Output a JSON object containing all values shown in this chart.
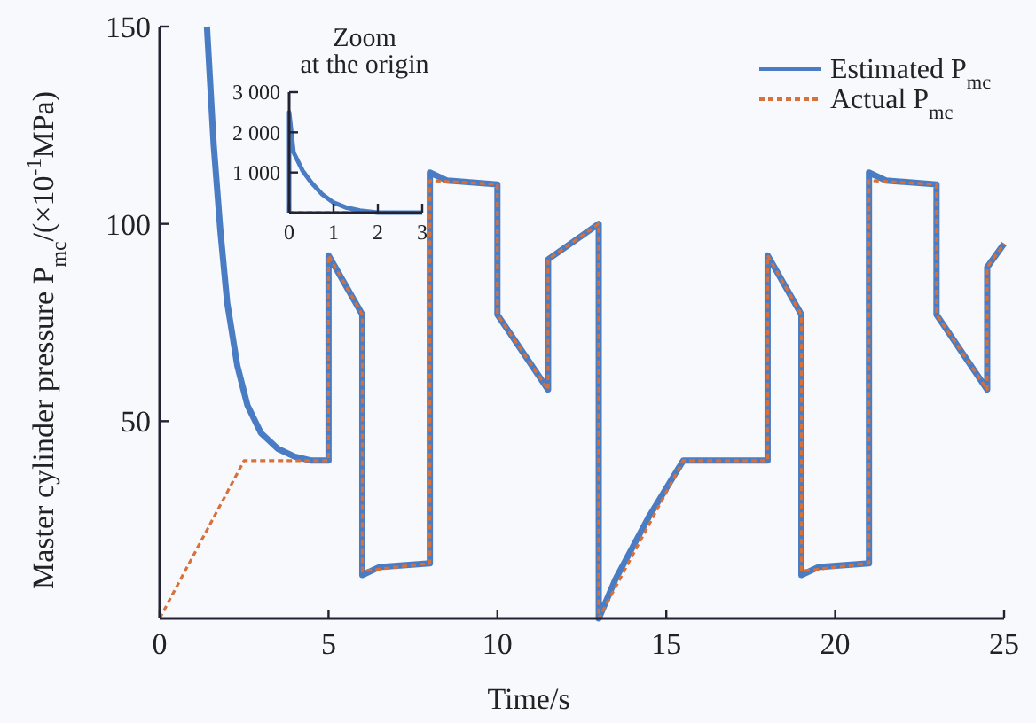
{
  "chart_data": [
    {
      "type": "line",
      "xlabel": "Time/s",
      "ylabel": "Master cylinder pressure P$_{mc}$/(×10$^{-1}$MPa)",
      "xlim": [
        0,
        25
      ],
      "ylim": [
        0,
        150
      ],
      "xticks": [
        0,
        5,
        10,
        15,
        20,
        25
      ],
      "yticks": [
        50,
        100,
        150
      ],
      "grid": false,
      "legend": "top right",
      "series": [
        {
          "name": "Estimated P$_{mc}$",
          "color": "#4a7cc4",
          "line_style": "solid",
          "x": [
            1.4,
            1.6,
            1.8,
            2,
            2.3,
            2.6,
            3,
            3.5,
            4,
            4.5,
            5,
            5,
            6,
            6,
            6.5,
            8,
            8,
            8.5,
            10,
            10,
            11.5,
            11.5,
            13,
            13,
            13.5,
            14.5,
            15.5,
            18,
            18,
            19,
            19,
            19.5,
            21,
            21,
            21.5,
            23,
            23,
            24.5,
            24.5,
            25
          ],
          "values": [
            150,
            120,
            98,
            80,
            64,
            54,
            47,
            43,
            41,
            40,
            40,
            92,
            77,
            11,
            13,
            14,
            113,
            111,
            110,
            77,
            58,
            91,
            100,
            0,
            10,
            26,
            40,
            40,
            92,
            77,
            11,
            13,
            14,
            113,
            111,
            110,
            77,
            58,
            89,
            95
          ]
        },
        {
          "name": "Actual P$_{mc}$",
          "color": "#d8703a",
          "line_style": "dashed",
          "x": [
            0,
            2.5,
            5,
            5,
            6,
            6,
            8,
            8,
            10,
            10,
            11.5,
            11.5,
            13,
            13,
            15.5,
            18,
            18,
            19,
            19,
            21,
            21,
            23,
            23,
            24.5,
            24.5,
            25
          ],
          "values": [
            0,
            40,
            40,
            92,
            77,
            12,
            14,
            111,
            110,
            77,
            58,
            91,
            100,
            0,
            40,
            40,
            92,
            77,
            12,
            14,
            111,
            110,
            77,
            58,
            89,
            95
          ]
        }
      ]
    },
    {
      "type": "line",
      "title": "Zoom at the origin",
      "xlim": [
        0,
        3
      ],
      "ylim": [
        0,
        3000
      ],
      "xticks": [
        0,
        1,
        2,
        3
      ],
      "yticks": [
        {
          "value": 1000,
          "label": "1 000"
        },
        {
          "value": 2000,
          "label": "2 000"
        },
        {
          "value": 3000,
          "label": "3 000"
        }
      ],
      "grid": false,
      "legend": false,
      "series": [
        {
          "color": "#4a7cc4",
          "line_style": "solid",
          "x": [
            0,
            0,
            0.1,
            0.3,
            0.5,
            0.75,
            1,
            1.3,
            1.6,
            2,
            2.5,
            3
          ],
          "values": [
            0,
            2500,
            1500,
            1050,
            750,
            450,
            250,
            120,
            50,
            0,
            0,
            0
          ]
        },
        {
          "color": "#d8703a",
          "line_style": "dashed",
          "x": [
            0,
            3
          ],
          "values": [
            0,
            0
          ]
        }
      ]
    }
  ]
}
